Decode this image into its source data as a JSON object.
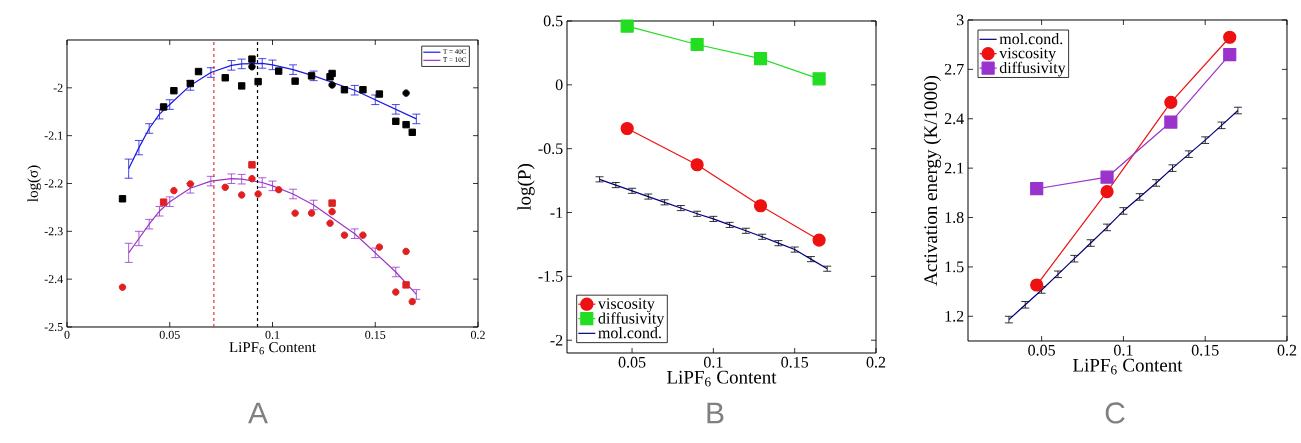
{
  "chart_data": [
    {
      "type": "scatter",
      "xlabel": "LiPF$_{6}$ Content",
      "ylabel": "log(σ)",
      "xlim": [
        0,
        0.2
      ],
      "ylim": [
        -2.5,
        -1.9
      ],
      "xticks": [
        0,
        0.05,
        0.1,
        0.15,
        0.2
      ],
      "yticks": [
        -2.5,
        -2.4,
        -2.3,
        -2.2,
        -2.1,
        -2
      ],
      "legend": "top right",
      "annotations": [
        "A"
      ],
      "ref_lines": [
        {
          "axis": "x",
          "value": 0.0715,
          "color": "#dd2222",
          "line_style": "dashed"
        },
        {
          "axis": "x",
          "value": 0.0927,
          "color": "#000000",
          "line_style": "dashed"
        }
      ],
      "series": [
        {
          "name": "T = 40C",
          "type": "line",
          "marker": "none",
          "color": "#1a1ae0",
          "x": [
            0.03,
            0.035,
            0.04,
            0.045,
            0.05,
            0.06,
            0.07,
            0.08,
            0.085,
            0.095,
            0.1,
            0.11,
            0.12,
            0.14,
            0.15,
            0.16,
            0.17
          ],
          "values": [
            -2.169,
            -2.125,
            -2.085,
            -2.055,
            -2.035,
            -1.995,
            -1.968,
            -1.953,
            -1.95,
            -1.949,
            -1.952,
            -1.962,
            -1.975,
            -2.005,
            -2.025,
            -2.045,
            -2.065
          ],
          "errors": [
            0.02,
            0.015,
            0.01,
            0.01,
            0.01,
            0.01,
            0.01,
            0.01,
            0.01,
            0.01,
            0.01,
            0.01,
            0.01,
            0.01,
            0.01,
            0.01,
            0.01
          ]
        },
        {
          "name": "T = 10C",
          "type": "line",
          "marker": "none",
          "color": "#9933cc",
          "x": [
            0.03,
            0.035,
            0.04,
            0.045,
            0.05,
            0.06,
            0.07,
            0.08,
            0.085,
            0.095,
            0.1,
            0.11,
            0.12,
            0.14,
            0.15,
            0.16,
            0.17
          ],
          "values": [
            -2.345,
            -2.315,
            -2.285,
            -2.258,
            -2.238,
            -2.21,
            -2.195,
            -2.19,
            -2.191,
            -2.198,
            -2.205,
            -2.222,
            -2.245,
            -2.305,
            -2.345,
            -2.385,
            -2.432
          ],
          "errors": [
            0.02,
            0.015,
            0.01,
            0.01,
            0.01,
            0.01,
            0.01,
            0.01,
            0.01,
            0.01,
            0.01,
            0.01,
            0.01,
            0.01,
            0.01,
            0.01,
            0.01
          ]
        },
        {
          "type": "scatter",
          "marker": "square",
          "color": "#000000",
          "x": [
            0.027,
            0.052,
            0.06,
            0.064,
            0.077,
            0.085,
            0.093,
            0.103,
            0.111,
            0.119,
            0.128,
            0.135,
            0.144,
            0.152,
            0.16,
            0.168
          ],
          "values": [
            -2.232,
            -2.006,
            -1.991,
            -1.966,
            -1.979,
            -1.996,
            -1.987,
            -1.965,
            -1.986,
            -1.975,
            -1.977,
            -2.004,
            -2.004,
            -2.013,
            -2.07,
            -2.093
          ]
        },
        {
          "type": "scatter",
          "marker": "square",
          "color": "#000000",
          "x": [
            0.047,
            0.09,
            0.129,
            0.165
          ],
          "values": [
            -2.04,
            -1.94,
            -1.97,
            -2.077
          ]
        },
        {
          "type": "scatter",
          "marker": "circle",
          "color": "#000000",
          "x": [
            0.09,
            0.129,
            0.165
          ],
          "values": [
            -1.956,
            -1.994,
            -2.011
          ]
        },
        {
          "type": "scatter",
          "marker": "circle",
          "color": "#e02020",
          "x": [
            0.027,
            0.052,
            0.06,
            0.077,
            0.085,
            0.093,
            0.103,
            0.111,
            0.119,
            0.128,
            0.135,
            0.144,
            0.152,
            0.16,
            0.168
          ],
          "values": [
            -2.417,
            -2.215,
            -2.201,
            -2.208,
            -2.224,
            -2.222,
            -2.213,
            -2.262,
            -2.262,
            -2.283,
            -2.308,
            -2.308,
            -2.333,
            -2.427,
            -2.447
          ]
        },
        {
          "type": "scatter",
          "marker": "square",
          "color": "#e02020",
          "x": [
            0.047,
            0.09,
            0.129,
            0.165
          ],
          "values": [
            -2.239,
            -2.161,
            -2.241,
            -2.412
          ]
        },
        {
          "type": "scatter",
          "marker": "circle",
          "color": "#e02020",
          "x": [
            0.09,
            0.129,
            0.165
          ],
          "values": [
            -2.19,
            -2.259,
            -2.342
          ]
        }
      ]
    },
    {
      "type": "line",
      "xlabel": "LiPF$_{6}$ Content",
      "ylabel": "log(P)",
      "xlim": [
        0.01,
        0.2
      ],
      "ylim": [
        -2.1,
        0.5
      ],
      "xticks": [
        0.05,
        0.1,
        0.15,
        0.2
      ],
      "yticks": [
        -2,
        -1.5,
        -1,
        -0.5,
        0,
        0.5
      ],
      "legend": "bottom left",
      "annotations": [
        "B"
      ],
      "series": [
        {
          "name": "viscosity",
          "marker": "circle",
          "color": "#ee1111",
          "x": [
            0.047,
            0.09,
            0.129,
            0.165
          ],
          "values": [
            -0.342,
            -0.626,
            -0.947,
            -1.216
          ]
        },
        {
          "name": "diffusivity",
          "marker": "square",
          "color": "#22dd22",
          "x": [
            0.047,
            0.09,
            0.129,
            0.165
          ],
          "values": [
            0.46,
            0.316,
            0.205,
            0.047
          ]
        },
        {
          "name": "mol.cond.",
          "marker": "none",
          "color": "#000080",
          "x": [
            0.03,
            0.04,
            0.05,
            0.06,
            0.07,
            0.08,
            0.09,
            0.1,
            0.11,
            0.12,
            0.13,
            0.14,
            0.15,
            0.16,
            0.17
          ],
          "values": [
            -0.74,
            -0.785,
            -0.83,
            -0.875,
            -0.92,
            -0.965,
            -1.01,
            -1.05,
            -1.097,
            -1.143,
            -1.19,
            -1.24,
            -1.29,
            -1.365,
            -1.44
          ],
          "errors": [
            0.02,
            0.02,
            0.02,
            0.02,
            0.02,
            0.02,
            0.02,
            0.02,
            0.02,
            0.02,
            0.02,
            0.02,
            0.02,
            0.02,
            0.02
          ]
        }
      ]
    },
    {
      "type": "line",
      "xlabel": "LiPF$_{6}$ Content",
      "ylabel": "Activation energy (K/1000)",
      "xlim": [
        0.005,
        0.2
      ],
      "ylim": [
        1.05,
        3
      ],
      "xticks": [
        0.05,
        0.1,
        0.15,
        0.2
      ],
      "yticks": [
        1.2,
        1.5,
        1.8,
        2.1,
        2.4,
        2.7,
        3
      ],
      "legend": "top left",
      "annotations": [
        "C"
      ],
      "series": [
        {
          "name": "mol.cond.",
          "marker": "none",
          "color": "#000080",
          "x": [
            0.03,
            0.04,
            0.05,
            0.06,
            0.07,
            0.08,
            0.09,
            0.1,
            0.11,
            0.12,
            0.13,
            0.14,
            0.15,
            0.16,
            0.17
          ],
          "values": [
            1.18,
            1.27,
            1.36,
            1.455,
            1.55,
            1.645,
            1.74,
            1.84,
            1.925,
            2.01,
            2.1,
            2.185,
            2.27,
            2.36,
            2.45
          ],
          "errors": [
            0.02,
            0.02,
            0.02,
            0.02,
            0.02,
            0.02,
            0.02,
            0.02,
            0.02,
            0.02,
            0.02,
            0.02,
            0.02,
            0.02,
            0.02
          ]
        },
        {
          "name": "viscosity",
          "marker": "circle",
          "color": "#ee1111",
          "x": [
            0.047,
            0.09,
            0.129,
            0.165
          ],
          "values": [
            1.39,
            1.957,
            2.5,
            2.895
          ]
        },
        {
          "name": "diffusivity",
          "marker": "square",
          "color": "#9933cc",
          "x": [
            0.047,
            0.09,
            0.129,
            0.165
          ],
          "values": [
            1.975,
            2.045,
            2.38,
            2.79
          ]
        }
      ]
    }
  ]
}
